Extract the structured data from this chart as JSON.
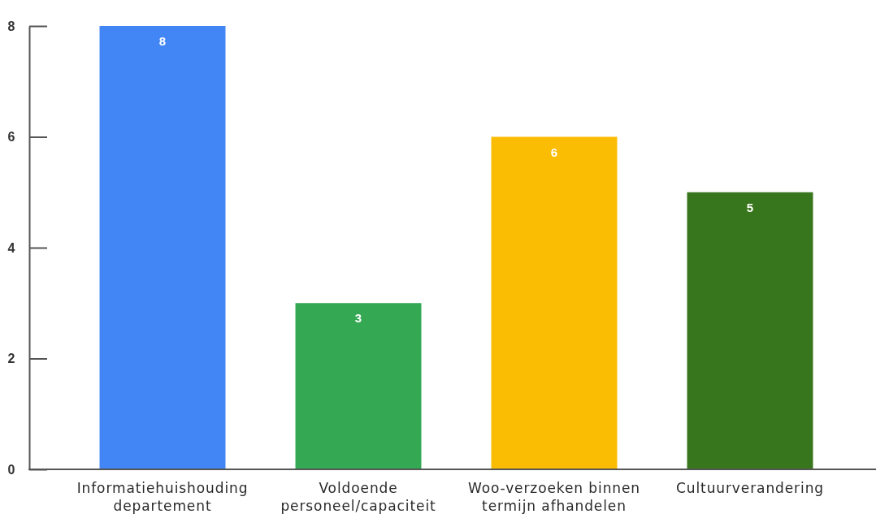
{
  "chart_data": {
    "type": "bar",
    "categories": [
      "Informatiehuishouding\ndepartement",
      "Voldoende\npersoneel/capaciteit",
      "Woo-verzoeken binnen\ntermijn afhandelen",
      "Cultuurverandering"
    ],
    "values": [
      8,
      3,
      6,
      5
    ],
    "colors": [
      "#4285f4",
      "#34a853",
      "#fbbc04",
      "#38761d"
    ],
    "ylim": [
      0,
      8
    ],
    "yticks": [
      0,
      2,
      4,
      6,
      8
    ],
    "data_labels": true
  }
}
